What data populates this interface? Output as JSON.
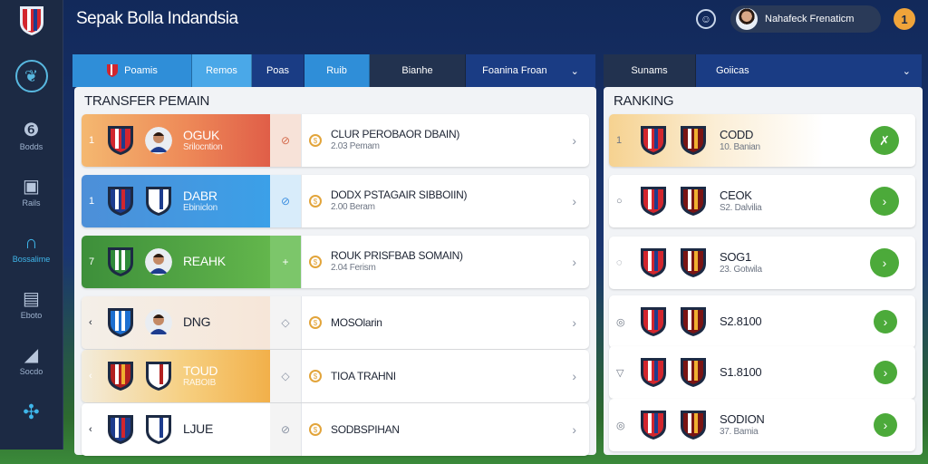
{
  "header": {
    "title": "Sepak Bolla Indandsia",
    "user_name": "Nahafeck Frenaticm",
    "notifications": "1"
  },
  "sidebar": {
    "items": [
      {
        "label": "Bodds",
        "icon": "dashboard-icon",
        "glyph": "❻"
      },
      {
        "label": "Rails",
        "icon": "shirt-icon",
        "glyph": "▣"
      },
      {
        "label": "Bossalime",
        "icon": "headset-icon",
        "glyph": "∩"
      },
      {
        "label": "Eboto",
        "icon": "monitor-icon",
        "glyph": "▤"
      },
      {
        "label": "Socdo",
        "icon": "ball-icon",
        "glyph": "◢"
      }
    ]
  },
  "tabs_left": [
    {
      "label": "Poamis",
      "style": "blue"
    },
    {
      "label": "Remos",
      "style": "lblue"
    },
    {
      "label": "Poas",
      "style": "navy"
    },
    {
      "label": "Ruib",
      "style": "blue"
    },
    {
      "label": "Bianhe",
      "style": "dark"
    },
    {
      "label": "Foanina Froan",
      "style": "navy"
    }
  ],
  "tabs_right": [
    {
      "label": "Sunams",
      "style": "dark"
    },
    {
      "label": "Goiicas",
      "style": "navy"
    }
  ],
  "transfer": {
    "title": "TRANSFER PEMAIN",
    "rows": [
      {
        "rank": "1",
        "name": "OGUK",
        "sub": "Srilocntion",
        "mid": "⊘",
        "deal": "CLUR PEROBAOR DBAIN)",
        "deal_sub": "2.03 Pemam"
      },
      {
        "rank": "1",
        "name": "DABR",
        "sub": "Ebiniclon",
        "mid": "⊘",
        "deal": "DODX PSTAGAIR SIBBOIIN)",
        "deal_sub": "2.00 Beram"
      },
      {
        "rank": "7",
        "name": "REAHK",
        "sub": "",
        "mid": "+",
        "deal": "ROUK PRISFBAB SOMAIN)",
        "deal_sub": "2.04 Ferism"
      },
      {
        "rank": "‹",
        "name": "DNG",
        "sub": "",
        "mid": "◇",
        "deal": "MOSOlarin",
        "deal_sub": ""
      },
      {
        "rank": "‹",
        "name": "TOUD",
        "sub": "RABOIB",
        "mid": "◇",
        "deal": "TIOA TRAHNI",
        "deal_sub": ""
      },
      {
        "rank": "‹",
        "name": "LJUE",
        "sub": "",
        "mid": "⊘",
        "deal": "SODBSPIHAN",
        "deal_sub": ""
      }
    ]
  },
  "ranking": {
    "title": "RANKING",
    "rows": [
      {
        "rank": "1",
        "name": "CODD",
        "sub": "10. Banian"
      },
      {
        "rank": "○",
        "name": "CEOK",
        "sub": "S2. Dalvilia"
      },
      {
        "rank": "◌",
        "name": "SOG1",
        "sub": "23. Gotwila"
      },
      {
        "rank": "◎",
        "name": "S2.8100",
        "sub": ""
      },
      {
        "rank": "▽",
        "name": "S1.8100",
        "sub": ""
      },
      {
        "rank": "◎",
        "name": "SODION",
        "sub": "37. Bamia"
      }
    ]
  },
  "colors": {
    "accent_blue": "#2f8ed8",
    "accent_green": "#4caa3a",
    "accent_orange": "#f0a43a"
  }
}
